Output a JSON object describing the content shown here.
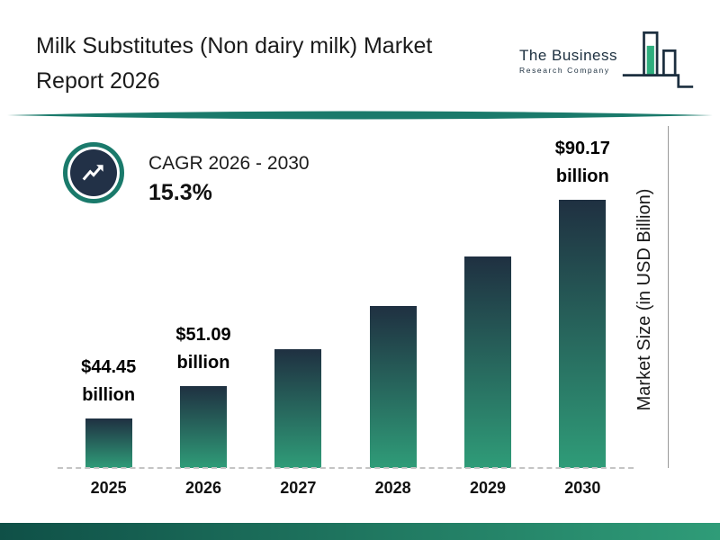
{
  "header": {
    "title_line1": "Milk Substitutes (Non dairy milk) Market",
    "title_line2": "Report 2026"
  },
  "logo": {
    "name_line1": "The Business",
    "name_line2": "Research Company"
  },
  "cagr": {
    "label": "CAGR 2026 - 2030",
    "value": "15.3%"
  },
  "chart_data": {
    "type": "bar",
    "title": "Milk Substitutes (Non dairy milk) Market Report 2026",
    "categories": [
      "2025",
      "2026",
      "2027",
      "2028",
      "2029",
      "2030"
    ],
    "values": [
      44.45,
      51.09,
      58.91,
      67.92,
      78.31,
      90.17
    ],
    "value_labels": [
      {
        "amount": "$44.45",
        "unit": "billion"
      },
      {
        "amount": "$51.09",
        "unit": "billion"
      },
      null,
      null,
      null,
      {
        "amount": "$90.17",
        "unit": "billion"
      }
    ],
    "xlabel": "",
    "ylabel": "Market Size (in USD Billion)",
    "ylim": [
      0,
      95
    ],
    "grid": false,
    "legend": false
  },
  "colors": {
    "bar_top": "#1f3041",
    "bar_bottom": "#2f9c78",
    "accent_teal": "#1a7a6b",
    "dark_navy": "#223147"
  }
}
